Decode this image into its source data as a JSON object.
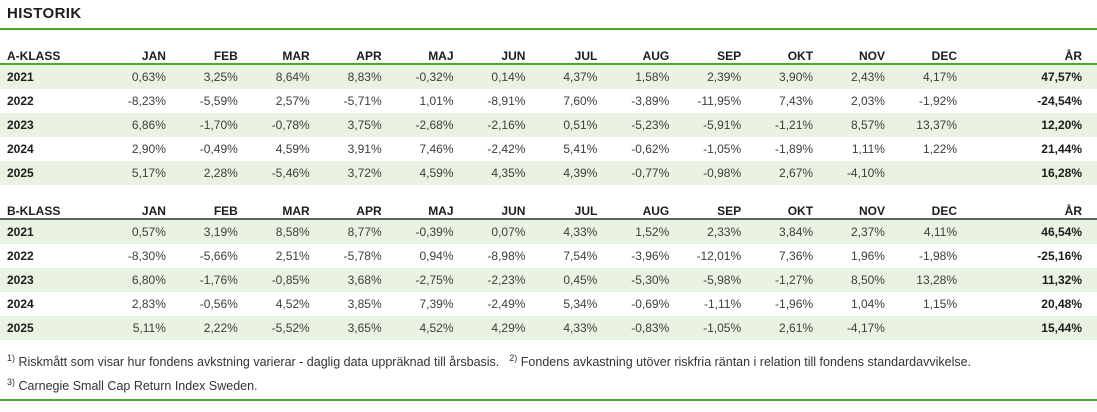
{
  "title": "HISTORIK",
  "colors": {
    "accent_green": "#4ea72e",
    "stripe_green": "#eaf3e2",
    "b_header_line_gray": "#5f5f5f"
  },
  "column_headers": [
    "JAN",
    "FEB",
    "MAR",
    "APR",
    "MAJ",
    "JUN",
    "JUL",
    "AUG",
    "SEP",
    "OKT",
    "NOV",
    "DEC",
    "ÅR"
  ],
  "tables": [
    {
      "label": "A-KLASS",
      "rows": [
        {
          "year": "2021",
          "values": [
            "0,63%",
            "3,25%",
            "8,64%",
            "8,83%",
            "-0,32%",
            "0,14%",
            "4,37%",
            "1,58%",
            "2,39%",
            "3,90%",
            "2,43%",
            "4,17%",
            "47,57%"
          ]
        },
        {
          "year": "2022",
          "values": [
            "-8,23%",
            "-5,59%",
            "2,57%",
            "-5,71%",
            "1,01%",
            "-8,91%",
            "7,60%",
            "-3,89%",
            "-11,95%",
            "7,43%",
            "2,03%",
            "-1,92%",
            "-24,54%"
          ]
        },
        {
          "year": "2023",
          "values": [
            "6,86%",
            "-1,70%",
            "-0,78%",
            "3,75%",
            "-2,68%",
            "-2,16%",
            "0,51%",
            "-5,23%",
            "-5,91%",
            "-1,21%",
            "8,57%",
            "13,37%",
            "12,20%"
          ]
        },
        {
          "year": "2024",
          "values": [
            "2,90%",
            "-0,49%",
            "4,59%",
            "3,91%",
            "7,46%",
            "-2,42%",
            "5,41%",
            "-0,62%",
            "-1,05%",
            "-1,89%",
            "1,11%",
            "1,22%",
            "21,44%"
          ]
        },
        {
          "year": "2025",
          "values": [
            "5,17%",
            "2,28%",
            "-5,46%",
            "3,72%",
            "4,59%",
            "4,35%",
            "4,39%",
            "-0,77%",
            "-0,98%",
            "2,67%",
            "-4,10%",
            "",
            "16,28%"
          ]
        }
      ]
    },
    {
      "label": "B-KLASS",
      "rows": [
        {
          "year": "2021",
          "values": [
            "0,57%",
            "3,19%",
            "8,58%",
            "8,77%",
            "-0,39%",
            "0,07%",
            "4,33%",
            "1,52%",
            "2,33%",
            "3,84%",
            "2,37%",
            "4,11%",
            "46,54%"
          ]
        },
        {
          "year": "2022",
          "values": [
            "-8,30%",
            "-5,66%",
            "2,51%",
            "-5,78%",
            "0,94%",
            "-8,98%",
            "7,54%",
            "-3,96%",
            "-12,01%",
            "7,36%",
            "1,96%",
            "-1,98%",
            "-25,16%"
          ]
        },
        {
          "year": "2023",
          "values": [
            "6,80%",
            "-1,76%",
            "-0,85%",
            "3,68%",
            "-2,75%",
            "-2,23%",
            "0,45%",
            "-5,30%",
            "-5,98%",
            "-1,27%",
            "8,50%",
            "13,28%",
            "11,32%"
          ]
        },
        {
          "year": "2024",
          "values": [
            "2,83%",
            "-0,56%",
            "4,52%",
            "3,85%",
            "7,39%",
            "-2,49%",
            "5,34%",
            "-0,69%",
            "-1,11%",
            "-1,96%",
            "1,04%",
            "1,15%",
            "20,48%"
          ]
        },
        {
          "year": "2025",
          "values": [
            "5,11%",
            "2,22%",
            "-5,52%",
            "3,65%",
            "4,52%",
            "4,29%",
            "4,33%",
            "-0,83%",
            "-1,05%",
            "2,61%",
            "-4,17%",
            "",
            "15,44%"
          ]
        }
      ]
    }
  ],
  "footnotes": [
    {
      "marker": "1)",
      "text": "Riskmått som visar hur fondens avkstning varierar - daglig data uppräknad till årsbasis."
    },
    {
      "marker": "2)",
      "text": "Fondens avkastning utöver riskfria räntan i relation till fondens standardavvikelse."
    },
    {
      "marker": "3)",
      "text": "Carnegie Small Cap Return Index Sweden."
    }
  ]
}
